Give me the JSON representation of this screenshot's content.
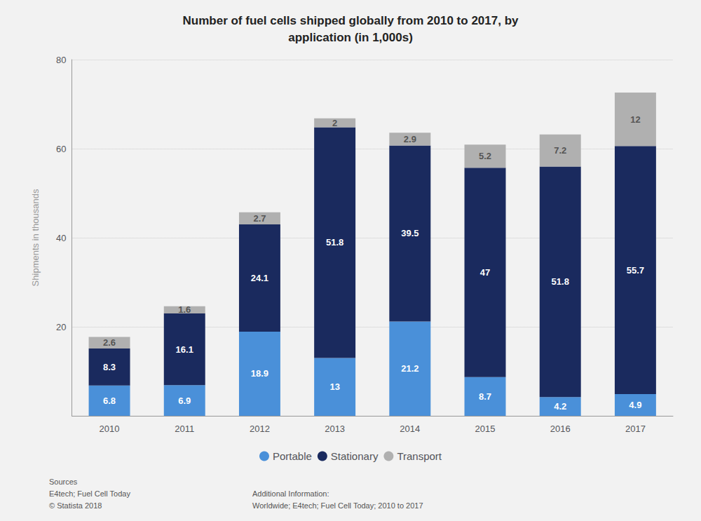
{
  "chart_data": {
    "type": "bar",
    "title": "Number of fuel cells shipped globally from 2010 to 2017, by\napplication (in 1,000s)",
    "y_label": "Shipments in thousands",
    "categories": [
      "2010",
      "2011",
      "2012",
      "2013",
      "2014",
      "2015",
      "2016",
      "2017"
    ],
    "series": [
      {
        "name": "Portable",
        "color": "#4a90d9",
        "values": [
          6.8,
          6.9,
          18.9,
          13,
          21.2,
          8.7,
          4.2,
          4.9
        ]
      },
      {
        "name": "Stationary",
        "color": "#1a2a5e",
        "values": [
          8.3,
          16.1,
          24.1,
          51.8,
          39.5,
          47,
          51.8,
          55.7
        ]
      },
      {
        "name": "Transport",
        "color": "#b0b0b0",
        "values": [
          2.6,
          1.6,
          2.7,
          2,
          2.9,
          5.2,
          7.2,
          12
        ]
      }
    ],
    "stacked": true,
    "data_labels": true,
    "ylim": [
      0,
      80
    ],
    "yticks": [
      20,
      40,
      60,
      80
    ],
    "grid": true,
    "legend": "bottom",
    "annotations": [
      "Sources\nE4tech; Fuel Cell Today\n© Statista 2018",
      "Additional Information:\nWorldwide; E4tech; Fuel Cell Today; 2010 to 2017"
    ]
  }
}
